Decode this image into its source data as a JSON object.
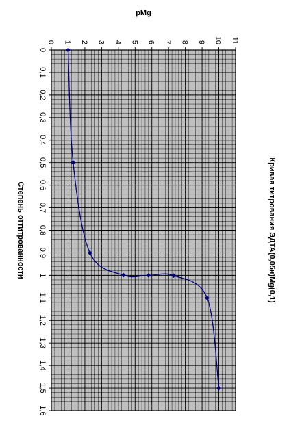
{
  "chart_data": {
    "type": "scatter",
    "title": "Кривая титрования ЭДТА(0,05н)Mg(0,1)",
    "xlabel": "Степень оттитрованности",
    "ylabel": "pMg",
    "xlim": [
      0,
      1.6
    ],
    "ylim": [
      0,
      11
    ],
    "x_ticks": [
      "0",
      "0,1",
      "0,2",
      "0,3",
      "0,4",
      "0,5",
      "0,6",
      "0,7",
      "0,8",
      "0,9",
      "1",
      "1,1",
      "1,2",
      "1,3",
      "1,4",
      "1,5",
      "1,6"
    ],
    "y_ticks": [
      "0",
      "1",
      "2",
      "3",
      "4",
      "5",
      "6",
      "7",
      "8",
      "9",
      "10",
      "11"
    ],
    "grid": true,
    "smooth_line": true,
    "orientation": "rotated 90° clockwise",
    "series": [
      {
        "x": [
          0,
          0.5,
          0.9,
          0.999,
          1.0,
          1.001,
          1.1,
          1.5
        ],
        "y": [
          1.0,
          1.3,
          2.3,
          4.3,
          5.8,
          7.3,
          9.3,
          10.0
        ]
      }
    ],
    "colors": {
      "plot_bg": "#c0c0c0",
      "grid": "#000000",
      "line": "#000080",
      "marker": "#000080"
    }
  }
}
